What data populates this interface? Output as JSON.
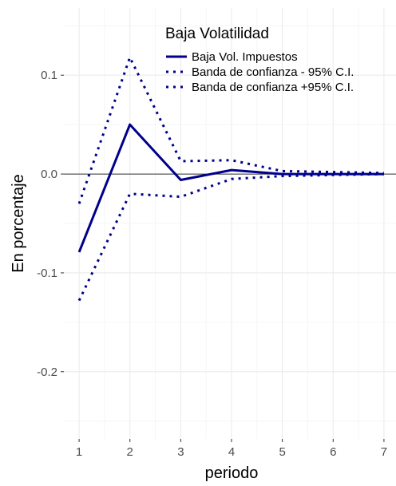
{
  "chart_data": {
    "type": "line",
    "xlabel": "periodo",
    "ylabel": "En porcentaje",
    "x": [
      1,
      2,
      3,
      4,
      5,
      6,
      7
    ],
    "xlim": [
      0.7,
      7.3
    ],
    "ylim": [
      -0.268,
      0.168
    ],
    "x_ticks": [
      1,
      2,
      3,
      4,
      5,
      6,
      7
    ],
    "x_tick_labels": [
      "1",
      "2",
      "3",
      "4",
      "5",
      "6",
      "7"
    ],
    "y_ticks": [
      -0.2,
      -0.1,
      0.0,
      0.1
    ],
    "y_tick_labels": [
      "-0.2",
      "-0.1",
      "0.0",
      "0.1"
    ],
    "hline": 0,
    "grid": true,
    "legend": {
      "title": "Baja Volatilidad",
      "position": "top-right"
    },
    "series": [
      {
        "name": "Baja Vol. Impuestos",
        "style": "solid",
        "color": "#00008B",
        "values": [
          -0.079,
          0.05,
          -0.006,
          0.004,
          0.0,
          0.0,
          0.0
        ]
      },
      {
        "name": "Banda de confianza - 95% C.I.",
        "style": "dotted",
        "color": "#00008B",
        "values": [
          -0.128,
          -0.02,
          -0.023,
          -0.005,
          -0.002,
          -0.001,
          0.0
        ]
      },
      {
        "name": "Banda de confianza +95% C.I.",
        "style": "dotted",
        "color": "#00008B",
        "values": [
          -0.03,
          0.118,
          0.013,
          0.014,
          0.003,
          0.002,
          0.001
        ]
      }
    ]
  }
}
